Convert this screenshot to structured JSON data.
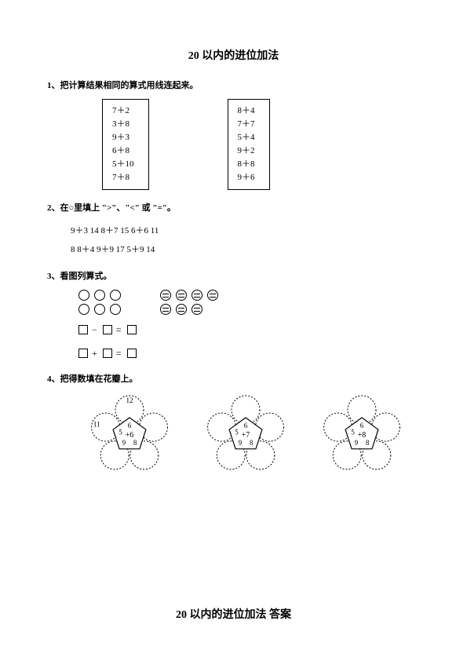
{
  "title": "20 以内的进位加法",
  "q1": {
    "heading": "1、把计算结果相同的算式用线连起来。",
    "left_box": [
      "7＋2",
      "3＋8",
      "9＋3",
      "6＋8",
      "5＋10",
      "7＋8"
    ],
    "right_box": [
      "8＋4",
      "7＋7",
      "5＋4",
      "9＋2",
      "8＋8",
      "9＋6"
    ]
  },
  "q2": {
    "heading": "2、在○里填上 \">\"、\"<\" 或 \"=\"。",
    "line1": "9＋3  14     8＋7  15     6＋6  11",
    "line2": "8  8＋4     9＋9  17     5＋9  14"
  },
  "q3": {
    "heading": "3、看图列算式。"
  },
  "q4": {
    "heading": "4、把得数填在花瓣上。",
    "flowers": [
      {
        "center": "+6",
        "petals": [
          "12",
          "6",
          "11",
          "5",
          "9",
          "8"
        ],
        "show_sums": true
      },
      {
        "center": "+7",
        "petals": [
          "",
          "6",
          "",
          "5",
          "9",
          "8"
        ],
        "show_sums": false
      },
      {
        "center": "+8",
        "petals": [
          "",
          "6",
          "",
          "5",
          "9",
          "8"
        ],
        "show_sums": false
      }
    ]
  },
  "answer_title": "20 以内的进位加法   答案",
  "style": {
    "page_bg": "#ffffff",
    "text_color": "#000000",
    "border_color": "#000000",
    "font_family": "SimSun",
    "title_fontsize": 14,
    "body_fontsize": 11,
    "stroke_width": 1.2
  }
}
